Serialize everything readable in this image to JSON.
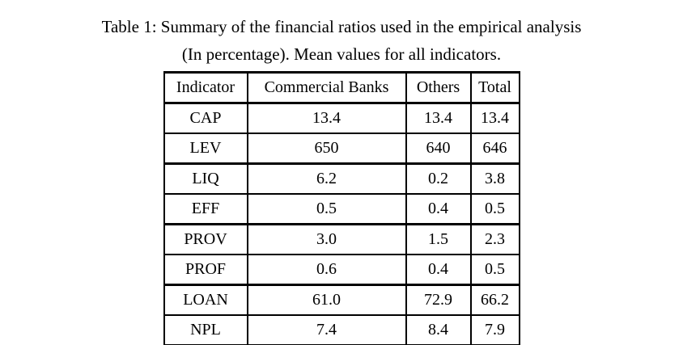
{
  "caption": {
    "line1": "Table 1: Summary of the financial ratios used in the empirical analysis",
    "line2": "(In percentage). Mean values for all indicators."
  },
  "table": {
    "columns": [
      "Indicator",
      "Commercial Banks",
      "Others",
      "Total"
    ],
    "rows": [
      [
        "CAP",
        "13.4",
        "13.4",
        "13.4"
      ],
      [
        "LEV",
        "650",
        "640",
        "646"
      ],
      [
        "LIQ",
        "6.2",
        "0.2",
        "3.8"
      ],
      [
        "EFF",
        "0.5",
        "0.4",
        "0.5"
      ],
      [
        "PROV",
        "3.0",
        "1.5",
        "2.3"
      ],
      [
        "PROF",
        "0.6",
        "0.4",
        "0.5"
      ],
      [
        "LOAN",
        "61.0",
        "72.9",
        "66.2"
      ],
      [
        "NPL",
        "7.4",
        "8.4",
        "7.9"
      ]
    ]
  },
  "colors": {
    "text": "#000000",
    "background": "#ffffff",
    "border": "#000000"
  }
}
